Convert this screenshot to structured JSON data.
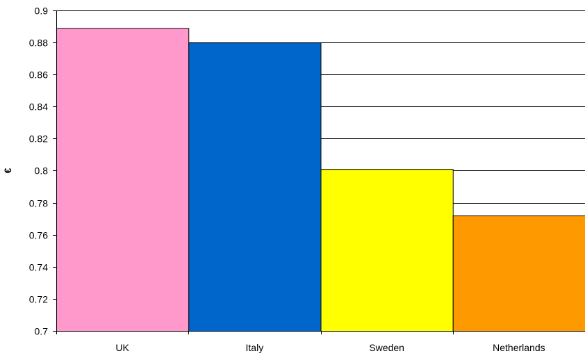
{
  "chart_data": {
    "type": "bar",
    "title": "",
    "xlabel": "",
    "ylabel": "€",
    "categories": [
      "UK",
      "Italy",
      "Sweden",
      "Netherlands"
    ],
    "values": [
      0.889,
      0.88,
      0.801,
      0.772
    ],
    "colors": [
      "#FF99CC",
      "#0066CC",
      "#FFFF00",
      "#FF9900"
    ],
    "ylim": [
      0.7,
      0.9
    ],
    "yticks": [
      0.7,
      0.72,
      0.74,
      0.76,
      0.78,
      0.8,
      0.82,
      0.84,
      0.86,
      0.88,
      0.9
    ],
    "ytick_labels": [
      "0.7",
      "0.72",
      "0.74",
      "0.76",
      "0.78",
      "0.8",
      "0.82",
      "0.84",
      "0.86",
      "0.88",
      "0.9"
    ],
    "grid": true,
    "legend": "none"
  }
}
